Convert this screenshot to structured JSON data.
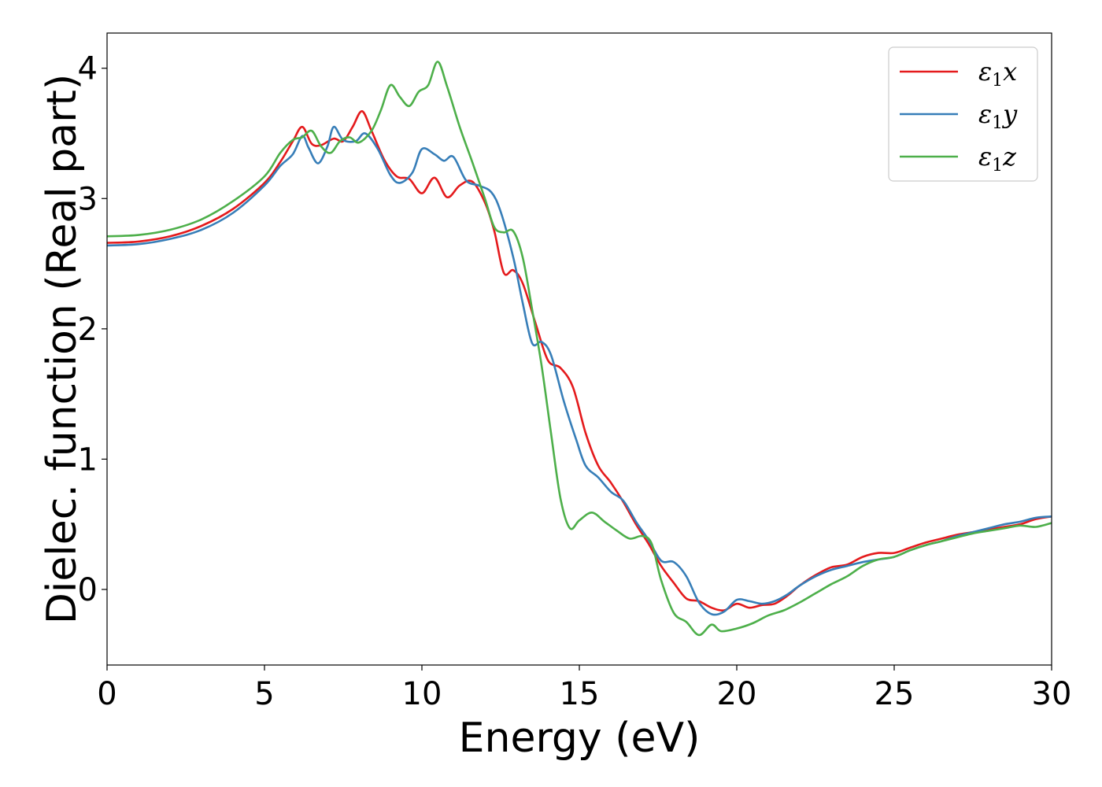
{
  "chart_data": {
    "type": "line",
    "title": "",
    "xlabel": "Energy (eV)",
    "ylabel": "Dielec. function (Real part)",
    "xlim": [
      0,
      30
    ],
    "ylim": [
      -0.58,
      4.27
    ],
    "xticks": [
      0,
      5,
      10,
      15,
      20,
      25,
      30
    ],
    "yticks": [
      0,
      1,
      2,
      3,
      4
    ],
    "xtick_labels": [
      "0",
      "5",
      "10",
      "15",
      "20",
      "25",
      "30"
    ],
    "ytick_labels": [
      "0",
      "1",
      "2",
      "3",
      "4"
    ],
    "grid": false,
    "legend_position": "top-right",
    "series": [
      {
        "name": "ε1x",
        "legend_main": "ε",
        "legend_sub": "1",
        "legend_tail": "x",
        "color": "#e41a1c",
        "points": [
          [
            0,
            2.66
          ],
          [
            1,
            2.67
          ],
          [
            2,
            2.71
          ],
          [
            3,
            2.79
          ],
          [
            4,
            2.92
          ],
          [
            5,
            3.12
          ],
          [
            5.5,
            3.28
          ],
          [
            5.9,
            3.44
          ],
          [
            6.2,
            3.55
          ],
          [
            6.5,
            3.42
          ],
          [
            6.8,
            3.41
          ],
          [
            7.2,
            3.46
          ],
          [
            7.5,
            3.44
          ],
          [
            7.8,
            3.55
          ],
          [
            8.1,
            3.67
          ],
          [
            8.4,
            3.52
          ],
          [
            8.8,
            3.3
          ],
          [
            9.2,
            3.17
          ],
          [
            9.6,
            3.15
          ],
          [
            10,
            3.04
          ],
          [
            10.4,
            3.16
          ],
          [
            10.8,
            3.01
          ],
          [
            11.2,
            3.1
          ],
          [
            11.6,
            3.13
          ],
          [
            12,
            2.97
          ],
          [
            12.3,
            2.75
          ],
          [
            12.6,
            2.43
          ],
          [
            12.9,
            2.45
          ],
          [
            13.2,
            2.35
          ],
          [
            13.6,
            2.05
          ],
          [
            14,
            1.76
          ],
          [
            14.4,
            1.7
          ],
          [
            14.8,
            1.55
          ],
          [
            15.2,
            1.2
          ],
          [
            15.6,
            0.95
          ],
          [
            16,
            0.82
          ],
          [
            16.4,
            0.67
          ],
          [
            16.8,
            0.5
          ],
          [
            17.2,
            0.35
          ],
          [
            17.6,
            0.18
          ],
          [
            18,
            0.05
          ],
          [
            18.4,
            -0.07
          ],
          [
            18.8,
            -0.09
          ],
          [
            19.2,
            -0.14
          ],
          [
            19.6,
            -0.16
          ],
          [
            20,
            -0.11
          ],
          [
            20.4,
            -0.14
          ],
          [
            20.8,
            -0.12
          ],
          [
            21.2,
            -0.11
          ],
          [
            21.6,
            -0.05
          ],
          [
            22,
            0.03
          ],
          [
            22.5,
            0.11
          ],
          [
            23,
            0.17
          ],
          [
            23.5,
            0.19
          ],
          [
            24,
            0.25
          ],
          [
            24.5,
            0.28
          ],
          [
            25,
            0.28
          ],
          [
            25.5,
            0.32
          ],
          [
            26,
            0.36
          ],
          [
            26.5,
            0.39
          ],
          [
            27,
            0.42
          ],
          [
            27.5,
            0.44
          ],
          [
            28,
            0.46
          ],
          [
            28.5,
            0.48
          ],
          [
            29,
            0.5
          ],
          [
            29.5,
            0.54
          ],
          [
            30,
            0.56
          ]
        ]
      },
      {
        "name": "ε1y",
        "legend_main": "ε",
        "legend_sub": "1",
        "legend_tail": "y",
        "color": "#377eb8",
        "points": [
          [
            0,
            2.64
          ],
          [
            1,
            2.65
          ],
          [
            2,
            2.69
          ],
          [
            3,
            2.76
          ],
          [
            4,
            2.89
          ],
          [
            5,
            3.1
          ],
          [
            5.5,
            3.25
          ],
          [
            5.9,
            3.34
          ],
          [
            6.2,
            3.48
          ],
          [
            6.4,
            3.39
          ],
          [
            6.7,
            3.27
          ],
          [
            7,
            3.4
          ],
          [
            7.2,
            3.55
          ],
          [
            7.5,
            3.45
          ],
          [
            7.9,
            3.44
          ],
          [
            8.2,
            3.5
          ],
          [
            8.6,
            3.38
          ],
          [
            9,
            3.18
          ],
          [
            9.3,
            3.12
          ],
          [
            9.7,
            3.2
          ],
          [
            10,
            3.38
          ],
          [
            10.4,
            3.34
          ],
          [
            10.7,
            3.29
          ],
          [
            11,
            3.32
          ],
          [
            11.4,
            3.14
          ],
          [
            11.8,
            3.1
          ],
          [
            12.2,
            3.05
          ],
          [
            12.5,
            2.9
          ],
          [
            12.9,
            2.55
          ],
          [
            13.2,
            2.2
          ],
          [
            13.5,
            1.89
          ],
          [
            13.8,
            1.9
          ],
          [
            14.1,
            1.8
          ],
          [
            14.5,
            1.45
          ],
          [
            14.9,
            1.15
          ],
          [
            15.2,
            0.95
          ],
          [
            15.6,
            0.86
          ],
          [
            16,
            0.75
          ],
          [
            16.4,
            0.68
          ],
          [
            16.8,
            0.52
          ],
          [
            17.2,
            0.38
          ],
          [
            17.6,
            0.22
          ],
          [
            18,
            0.21
          ],
          [
            18.4,
            0.1
          ],
          [
            18.8,
            -0.1
          ],
          [
            19.2,
            -0.19
          ],
          [
            19.6,
            -0.17
          ],
          [
            20,
            -0.08
          ],
          [
            20.4,
            -0.09
          ],
          [
            20.8,
            -0.11
          ],
          [
            21.2,
            -0.09
          ],
          [
            21.6,
            -0.04
          ],
          [
            22,
            0.03
          ],
          [
            22.5,
            0.1
          ],
          [
            23,
            0.15
          ],
          [
            23.5,
            0.18
          ],
          [
            24,
            0.21
          ],
          [
            24.5,
            0.23
          ],
          [
            25,
            0.25
          ],
          [
            25.5,
            0.3
          ],
          [
            26,
            0.34
          ],
          [
            26.5,
            0.37
          ],
          [
            27,
            0.41
          ],
          [
            27.5,
            0.44
          ],
          [
            28,
            0.47
          ],
          [
            28.5,
            0.5
          ],
          [
            29,
            0.52
          ],
          [
            29.5,
            0.55
          ],
          [
            30,
            0.56
          ]
        ]
      },
      {
        "name": "ε1z",
        "legend_main": "ε",
        "legend_sub": "1",
        "legend_tail": "z",
        "color": "#4daf4a",
        "points": [
          [
            0,
            2.71
          ],
          [
            1,
            2.72
          ],
          [
            2,
            2.76
          ],
          [
            3,
            2.84
          ],
          [
            4,
            2.98
          ],
          [
            5,
            3.17
          ],
          [
            5.5,
            3.35
          ],
          [
            5.9,
            3.45
          ],
          [
            6.2,
            3.47
          ],
          [
            6.5,
            3.52
          ],
          [
            6.8,
            3.4
          ],
          [
            7.1,
            3.35
          ],
          [
            7.4,
            3.44
          ],
          [
            7.7,
            3.47
          ],
          [
            8,
            3.43
          ],
          [
            8.4,
            3.52
          ],
          [
            8.7,
            3.68
          ],
          [
            9,
            3.87
          ],
          [
            9.3,
            3.78
          ],
          [
            9.6,
            3.71
          ],
          [
            9.9,
            3.82
          ],
          [
            10.2,
            3.87
          ],
          [
            10.5,
            4.05
          ],
          [
            10.8,
            3.86
          ],
          [
            11.2,
            3.55
          ],
          [
            11.6,
            3.28
          ],
          [
            12,
            3.0
          ],
          [
            12.3,
            2.78
          ],
          [
            12.6,
            2.74
          ],
          [
            12.9,
            2.75
          ],
          [
            13.2,
            2.55
          ],
          [
            13.5,
            2.15
          ],
          [
            13.8,
            1.72
          ],
          [
            14.1,
            1.2
          ],
          [
            14.4,
            0.7
          ],
          [
            14.7,
            0.47
          ],
          [
            15,
            0.53
          ],
          [
            15.4,
            0.59
          ],
          [
            15.8,
            0.52
          ],
          [
            16.2,
            0.45
          ],
          [
            16.6,
            0.39
          ],
          [
            17,
            0.41
          ],
          [
            17.3,
            0.35
          ],
          [
            17.6,
            0.07
          ],
          [
            18,
            -0.18
          ],
          [
            18.4,
            -0.25
          ],
          [
            18.8,
            -0.35
          ],
          [
            19.2,
            -0.27
          ],
          [
            19.5,
            -0.32
          ],
          [
            20,
            -0.3
          ],
          [
            20.5,
            -0.26
          ],
          [
            21,
            -0.2
          ],
          [
            21.5,
            -0.16
          ],
          [
            22,
            -0.1
          ],
          [
            22.5,
            -0.03
          ],
          [
            23,
            0.04
          ],
          [
            23.5,
            0.1
          ],
          [
            24,
            0.18
          ],
          [
            24.5,
            0.23
          ],
          [
            25,
            0.25
          ],
          [
            25.5,
            0.3
          ],
          [
            26,
            0.34
          ],
          [
            26.5,
            0.37
          ],
          [
            27,
            0.4
          ],
          [
            27.5,
            0.43
          ],
          [
            28,
            0.45
          ],
          [
            28.5,
            0.47
          ],
          [
            29,
            0.49
          ],
          [
            29.5,
            0.48
          ],
          [
            30,
            0.51
          ]
        ]
      }
    ]
  }
}
